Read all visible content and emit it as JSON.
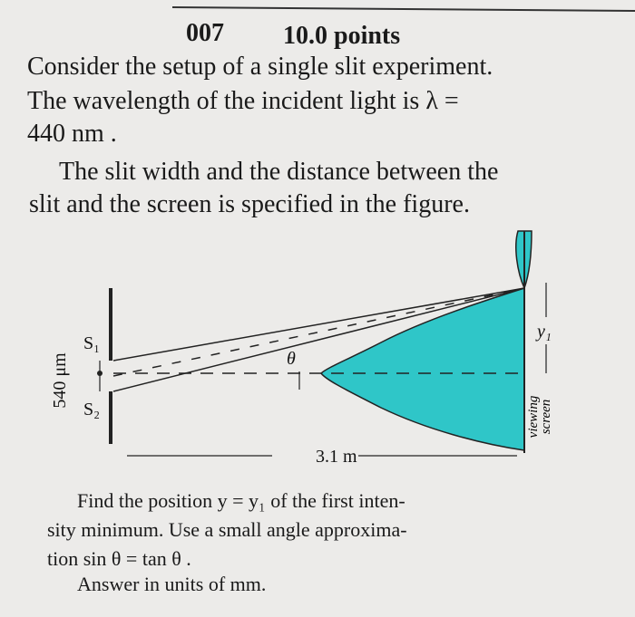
{
  "header": {
    "number": "007",
    "points": "10.0 points"
  },
  "intro": {
    "lines": [
      "Consider the setup of a single slit experiment.",
      "The wavelength of the incident light is λ =",
      "440 nm .",
      "The slit width and the distance between the",
      "slit and the screen is specified in the figure."
    ]
  },
  "figure": {
    "slit_width": "540 μm",
    "slit_top": "S₁",
    "slit_bottom": "S₂",
    "angle": "θ",
    "distance": "3.1 m",
    "position": "y₁",
    "screen": [
      "viewing",
      "screen"
    ]
  },
  "question": {
    "lines": [
      "Find the position y = y₁ of the first inten-",
      "sity minimum. Use a small angle approxima-",
      "tion sin θ = tan θ .",
      "Answer in units of mm."
    ]
  }
}
